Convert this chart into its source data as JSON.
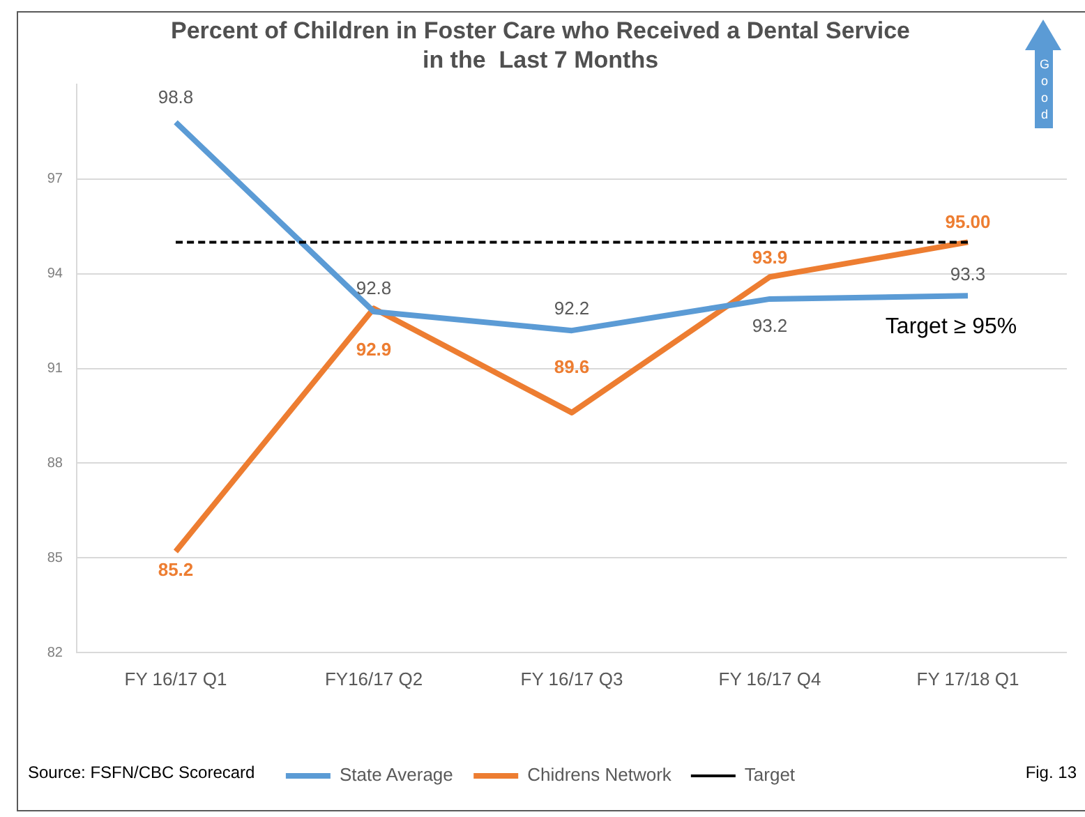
{
  "chart_data": {
    "type": "line",
    "title": "Percent of Children in Foster Care who Received a Dental Service\nin the  Last 7 Months",
    "categories": [
      "FY 16/17 Q1",
      "FY16/17 Q2",
      "FY 16/17 Q3",
      "FY 16/17 Q4",
      "FY 17/18 Q1"
    ],
    "series": [
      {
        "name": "State Average",
        "color": "#5b9bd5",
        "values": [
          98.8,
          92.8,
          92.2,
          93.2,
          93.3
        ],
        "value_labels": [
          "98.8",
          "92.8",
          "92.2",
          "93.2",
          "93.3"
        ]
      },
      {
        "name": "Chidrens Network",
        "color": "#ed7d31",
        "values": [
          85.2,
          92.9,
          89.6,
          93.9,
          95.0
        ],
        "value_labels": [
          "85.2",
          "92.9",
          "89.6",
          "93.9",
          "95.00"
        ]
      },
      {
        "name": "Target",
        "color": "#000000",
        "values": [
          95,
          95,
          95,
          95,
          95
        ],
        "line_style": "dashed"
      }
    ],
    "ylim": [
      82,
      100
    ],
    "yticks": [
      82,
      85,
      88,
      91,
      94,
      97
    ],
    "grid": "y",
    "legend": "bottom",
    "marker": "none",
    "line_style": "solid",
    "annotations": [
      "Target ≥ 95%",
      "Source: FSFN/CBC Scorecard",
      "Fig. 13",
      "Good"
    ]
  }
}
